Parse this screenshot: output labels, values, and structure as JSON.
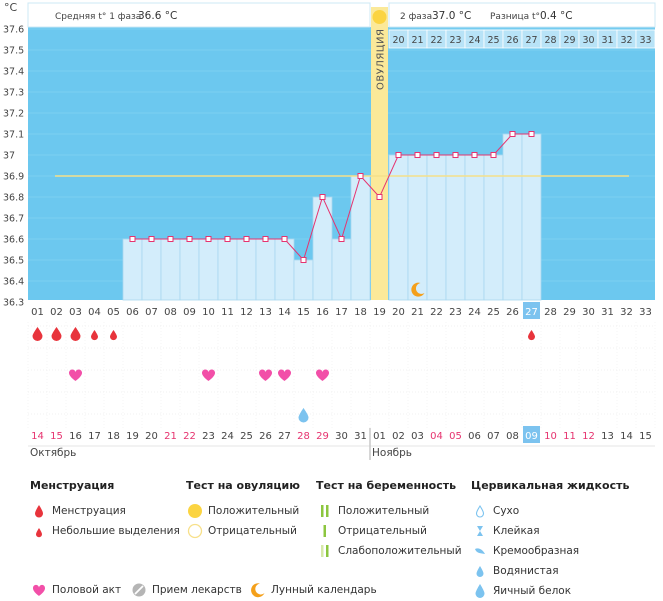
{
  "chart_data": {
    "type": "line",
    "title": "",
    "ylabel": "°C",
    "y_ticks": [
      "37.6",
      "37.5",
      "37.4",
      "37.3",
      "37.2",
      "37.1",
      "37",
      "36.9",
      "36.8",
      "36.7",
      "36.6",
      "36.5",
      "36.4",
      "36.3"
    ],
    "ylim": [
      36.3,
      37.6
    ],
    "baseline": 36.9,
    "cycle_days": [
      "01",
      "02",
      "03",
      "04",
      "05",
      "06",
      "07",
      "08",
      "09",
      "10",
      "11",
      "12",
      "13",
      "14",
      "15",
      "16",
      "17",
      "18",
      "19",
      "20",
      "21",
      "22",
      "23",
      "24",
      "25",
      "26",
      "27",
      "28",
      "29",
      "30",
      "31",
      "32",
      "33"
    ],
    "highlight_cycle_day": "27",
    "dates": [
      "14",
      "15",
      "16",
      "17",
      "18",
      "19",
      "20",
      "21",
      "22",
      "23",
      "24",
      "25",
      "26",
      "27",
      "28",
      "29",
      "30",
      "31",
      "01",
      "02",
      "03",
      "04",
      "05",
      "06",
      "07",
      "08",
      "09",
      "10",
      "11",
      "12",
      "13",
      "14",
      "15"
    ],
    "date_colors": [
      "red",
      "red",
      "gray",
      "gray",
      "gray",
      "gray",
      "gray",
      "red",
      "red",
      "gray",
      "gray",
      "gray",
      "gray",
      "gray",
      "red",
      "red",
      "gray",
      "gray",
      "gray",
      "gray",
      "gray",
      "red",
      "red",
      "gray",
      "gray",
      "gray",
      "blue",
      "red",
      "red",
      "red",
      "gray",
      "gray",
      "gray"
    ],
    "highlight_date_index": 26,
    "months": [
      {
        "label": "Октябрь",
        "start_index": 0
      },
      {
        "label": "Ноябрь",
        "start_index": 18
      }
    ],
    "temperatures": [
      null,
      null,
      null,
      null,
      null,
      36.6,
      36.6,
      36.6,
      36.6,
      36.6,
      36.6,
      36.6,
      36.6,
      36.6,
      36.5,
      36.8,
      36.6,
      36.9,
      36.8,
      37.0,
      37.0,
      37.0,
      37.0,
      37.0,
      37.0,
      37.1,
      37.1,
      null,
      null,
      null,
      null,
      null,
      null
    ],
    "ovulation_day": 19,
    "ovulation_label": "ОВУЛЯЦИЯ",
    "phase2_start_day": 20,
    "phase2_end_day": 33,
    "phase1_summary": {
      "label": "Средняя t° 1 фаза",
      "value": "36.6 °C"
    },
    "phase2_summary": {
      "label": "2 фаза",
      "value": "37.0 °C"
    },
    "difference": {
      "label": "Разница t°",
      "value": "0.4 °C"
    },
    "moon_day": 21,
    "menstruation_days": [
      {
        "day": 1,
        "size": "large"
      },
      {
        "day": 2,
        "size": "large"
      },
      {
        "day": 3,
        "size": "large"
      },
      {
        "day": 4,
        "size": "small"
      },
      {
        "day": 5,
        "size": "small"
      },
      {
        "day": 27,
        "size": "small"
      }
    ],
    "intercourse_days": [
      3,
      10,
      13,
      14,
      16
    ],
    "cervical_fluid_days": [
      {
        "day": 15,
        "type": "egg_white"
      }
    ]
  },
  "colors": {
    "plot_bg": "#6cc8ef",
    "bar": "#d3edfb",
    "bar_line": "#a9d7ef",
    "line": "#e6336f",
    "ovulation": "#fbe999",
    "baseline": "#f5e08a",
    "heart": "#f24fa8",
    "drop": "#e8343c",
    "drop_blue": "#7cc3ef",
    "moon": "#f4a01b",
    "highlight_cell": "#7cc3ef",
    "red_date": "#e6336f",
    "sun": "#fbd441"
  },
  "legend": {
    "menstruation": {
      "title": "Менструация",
      "items": [
        "Менструация",
        "Небольшие выделения"
      ]
    },
    "ovulation_test": {
      "title": "Тест на овуляцию",
      "items": [
        "Положительный",
        "Отрицательный"
      ]
    },
    "pregnancy_test": {
      "title": "Тест на беременность",
      "items": [
        "Положительный",
        "Отрицательный",
        "Слабоположительный"
      ]
    },
    "cervical": {
      "title": "Цервикальная жидкость",
      "items": [
        "Сухо",
        "Клейкая",
        "Кремообразная",
        "Водянистая",
        "Яичный белок"
      ]
    },
    "bottom": [
      "Половой акт",
      "Прием лекарств",
      "Лунный календарь"
    ]
  }
}
